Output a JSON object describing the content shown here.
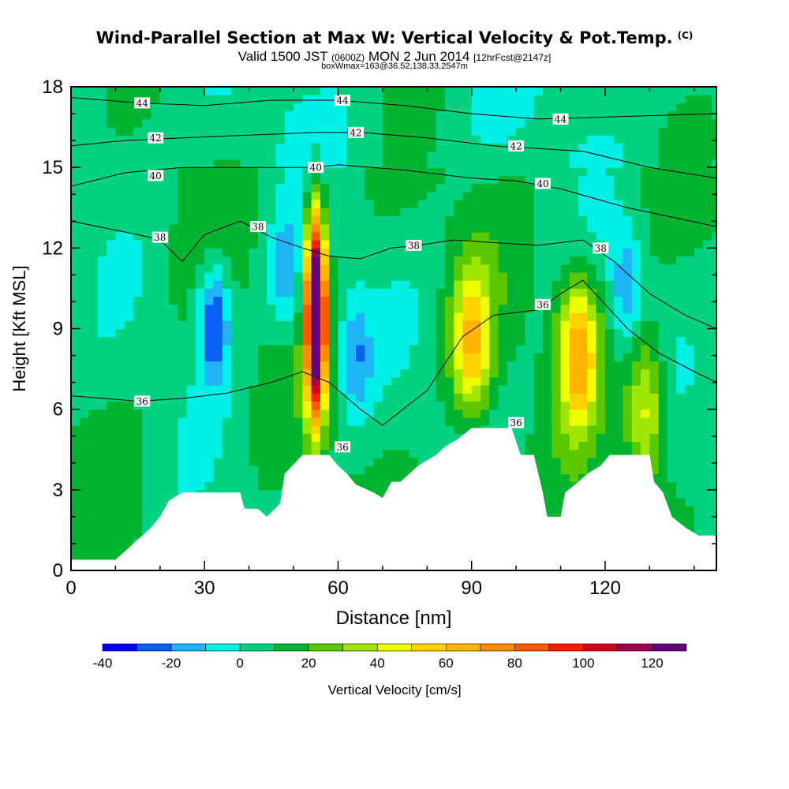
{
  "header": {
    "title": "Wind-Parallel Section at Max W: Vertical Velocity & Pot.Temp.",
    "copyright": "(C)",
    "valid_prefix": "Valid 1500 JST",
    "valid_z": "(0600Z)",
    "valid_date": "MON 2 Jun 2014",
    "forecast": "[12hrFcst@2147z]",
    "box_info": "boxWmax=163@36.52,138.33,2547m"
  },
  "chart_data": {
    "type": "heatmap",
    "xlabel": "Distance [nm]",
    "ylabel": "Height [Kft MSL]",
    "xlim": [
      0,
      145
    ],
    "ylim": [
      0,
      18
    ],
    "xticks": [
      0,
      30,
      60,
      90,
      120
    ],
    "yticks": [
      0,
      3,
      6,
      9,
      12,
      15,
      18
    ],
    "grid": false,
    "colorbar": {
      "label": "Vertical Velocity [cm/s]",
      "ticks": [
        -40,
        -20,
        0,
        20,
        40,
        60,
        80,
        100,
        120
      ],
      "levels": [
        -40,
        -30,
        -20,
        -10,
        0,
        10,
        20,
        30,
        40,
        50,
        60,
        70,
        80,
        90,
        100,
        110,
        120,
        130
      ],
      "colors": [
        "#0000f5",
        "#0a5ff5",
        "#1eb4f5",
        "#00f0e6",
        "#00d282",
        "#00b432",
        "#5ac800",
        "#a0e600",
        "#f0ff00",
        "#ffd200",
        "#ffb400",
        "#ff8c00",
        "#ff5a00",
        "#f51e00",
        "#d2001e",
        "#a00050",
        "#64007d"
      ]
    },
    "updraft_cores": [
      {
        "x": 55,
        "y": 9.5,
        "w_max": 163
      },
      {
        "x": 114,
        "y": 8.2,
        "w_max": 60
      },
      {
        "x": 90,
        "y": 8.5,
        "w_max": 50
      },
      {
        "x": 129,
        "y": 6.0,
        "w_max": 40
      }
    ],
    "downdraft_cores": [
      {
        "x": 32,
        "y": 9.3,
        "w_min": -40
      },
      {
        "x": 48,
        "y": 11.0,
        "w_min": -25
      },
      {
        "x": 64,
        "y": 8.0,
        "w_min": -25
      },
      {
        "x": 125,
        "y": 10.5,
        "w_min": -25
      }
    ],
    "terrain_kft": [
      [
        0,
        0.4
      ],
      [
        10,
        0.4
      ],
      [
        12,
        0.7
      ],
      [
        14,
        1.0
      ],
      [
        16,
        1.3
      ],
      [
        18,
        1.6
      ],
      [
        20,
        2.0
      ],
      [
        22,
        2.6
      ],
      [
        25,
        2.9
      ],
      [
        38,
        2.9
      ],
      [
        39,
        2.3
      ],
      [
        42,
        2.3
      ],
      [
        44,
        2.0
      ],
      [
        47,
        2.5
      ],
      [
        48,
        3.6
      ],
      [
        52,
        4.3
      ],
      [
        58,
        4.3
      ],
      [
        60,
        3.9
      ],
      [
        62,
        3.6
      ],
      [
        64,
        3.2
      ],
      [
        68,
        2.9
      ],
      [
        70,
        2.7
      ],
      [
        72,
        3.3
      ],
      [
        74,
        3.3
      ],
      [
        78,
        3.9
      ],
      [
        82,
        4.3
      ],
      [
        84,
        4.6
      ],
      [
        87,
        4.9
      ],
      [
        90,
        5.3
      ],
      [
        99,
        5.3
      ],
      [
        101,
        4.3
      ],
      [
        104,
        4.3
      ],
      [
        106,
        2.9
      ],
      [
        107,
        2.0
      ],
      [
        110,
        2.0
      ],
      [
        111,
        2.9
      ],
      [
        114,
        3.3
      ],
      [
        116,
        3.6
      ],
      [
        119,
        3.9
      ],
      [
        121,
        4.3
      ],
      [
        130,
        4.3
      ],
      [
        131,
        3.3
      ],
      [
        133,
        2.9
      ],
      [
        135,
        2.0
      ],
      [
        138,
        1.6
      ],
      [
        141,
        1.3
      ],
      [
        145,
        1.3
      ]
    ],
    "theta_contours": [
      {
        "label": "44",
        "pts": [
          [
            0,
            17.6
          ],
          [
            15,
            17.4
          ],
          [
            30,
            17.3
          ],
          [
            45,
            17.5
          ],
          [
            60,
            17.5
          ],
          [
            75,
            17.3
          ],
          [
            90,
            17.0
          ],
          [
            105,
            16.8
          ],
          [
            125,
            16.9
          ],
          [
            145,
            17.0
          ]
        ],
        "label_at": [
          [
            16,
            17.4
          ],
          [
            61,
            17.5
          ],
          [
            110,
            16.8
          ]
        ]
      },
      {
        "label": "42",
        "pts": [
          [
            0,
            15.8
          ],
          [
            12,
            16.0
          ],
          [
            25,
            16.1
          ],
          [
            40,
            16.2
          ],
          [
            55,
            16.3
          ],
          [
            65,
            16.3
          ],
          [
            80,
            16.1
          ],
          [
            95,
            15.8
          ],
          [
            105,
            15.7
          ],
          [
            115,
            15.6
          ],
          [
            130,
            15.0
          ],
          [
            145,
            14.6
          ]
        ],
        "label_at": [
          [
            19,
            16.1
          ],
          [
            64,
            16.3
          ],
          [
            100,
            15.8
          ]
        ]
      },
      {
        "label": "40",
        "pts": [
          [
            0,
            14.3
          ],
          [
            12,
            14.8
          ],
          [
            25,
            15.0
          ],
          [
            40,
            15.0
          ],
          [
            48,
            15.0
          ],
          [
            55,
            15.0
          ],
          [
            60,
            15.1
          ],
          [
            75,
            14.9
          ],
          [
            90,
            14.6
          ],
          [
            100,
            14.5
          ],
          [
            110,
            14.2
          ],
          [
            125,
            13.5
          ],
          [
            145,
            12.8
          ]
        ],
        "label_at": [
          [
            19,
            14.7
          ],
          [
            55,
            15.0
          ],
          [
            106,
            14.4
          ]
        ]
      },
      {
        "label": "38",
        "pts": [
          [
            0,
            13.0
          ],
          [
            15,
            12.5
          ],
          [
            20,
            12.3
          ],
          [
            25,
            11.5
          ],
          [
            30,
            12.5
          ],
          [
            38,
            13.0
          ],
          [
            45,
            12.4
          ],
          [
            52,
            12.0
          ],
          [
            58,
            11.7
          ],
          [
            65,
            11.6
          ],
          [
            72,
            12.0
          ],
          [
            78,
            12.1
          ],
          [
            86,
            12.3
          ],
          [
            95,
            12.2
          ],
          [
            105,
            12.1
          ],
          [
            115,
            12.3
          ],
          [
            122,
            11.5
          ],
          [
            130,
            10.3
          ],
          [
            138,
            9.5
          ],
          [
            145,
            9.0
          ]
        ],
        "label_at": [
          [
            20,
            12.4
          ],
          [
            42,
            12.8
          ],
          [
            77,
            12.1
          ],
          [
            119,
            12.0
          ]
        ]
      },
      {
        "label": "36",
        "pts": [
          [
            0,
            6.5
          ],
          [
            15,
            6.3
          ],
          [
            25,
            6.4
          ],
          [
            35,
            6.6
          ],
          [
            45,
            7.0
          ],
          [
            52,
            7.4
          ],
          [
            58,
            7.0
          ],
          [
            65,
            6.0
          ],
          [
            70,
            5.4
          ],
          [
            80,
            6.7
          ],
          [
            88,
            8.7
          ],
          [
            95,
            9.5
          ],
          [
            105,
            9.7
          ],
          [
            110,
            10.3
          ],
          [
            115,
            10.8
          ],
          [
            125,
            9.0
          ],
          [
            132,
            8.1
          ],
          [
            140,
            7.4
          ],
          [
            145,
            7.0
          ]
        ],
        "label_at": [
          [
            16,
            6.3
          ],
          [
            61,
            4.6
          ],
          [
            100,
            5.5
          ],
          [
            106,
            9.9
          ]
        ]
      }
    ]
  }
}
